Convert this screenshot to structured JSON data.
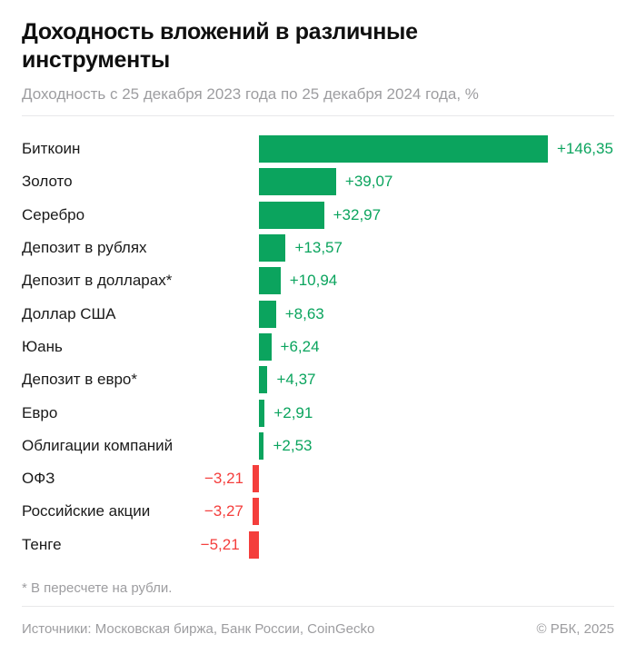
{
  "header": {
    "title": "Доходность вложений в различные инструменты",
    "subtitle": "Доходность с 25 декабря 2023 года по 25 декабря 2024 года, %"
  },
  "chart_data": {
    "type": "bar",
    "orientation": "horizontal",
    "title": "Доходность вложений в различные инструменты",
    "subtitle": "Доходность с 25 декабря 2023 года по 25 декабря 2024 года, %",
    "unit": "%",
    "categories": [
      "Биткоин",
      "Золото",
      "Серебро",
      "Депозит в рублях",
      "Депозит в долларах*",
      "Доллар США",
      "Юань",
      "Депозит в евро*",
      "Евро",
      "Облигации компаний",
      "ОФЗ",
      "Российские акции",
      "Тенге"
    ],
    "values": [
      146.35,
      39.07,
      32.97,
      13.57,
      10.94,
      8.63,
      6.24,
      4.37,
      2.91,
      2.53,
      -3.21,
      -3.27,
      -5.21
    ],
    "value_labels": [
      "+146,35",
      "+39,07",
      "+32,97",
      "+13,57",
      "+10,94",
      "+8,63",
      "+6,24",
      "+4,37",
      "+2,91",
      "+2,53",
      "−3,21",
      "−3,27",
      "−5,21"
    ],
    "xlim": [
      -5.21,
      146.35
    ],
    "grid": false,
    "legend": false,
    "positive_color": "#0ba45e",
    "negative_color": "#f43e3c"
  },
  "footer": {
    "footnote": "* В пересчете на рубли.",
    "sources": "Источники: Московская биржа, Банк России, CoinGecko",
    "copyright": "© РБК, 2025"
  },
  "colors": {
    "positive": "#0ba45e",
    "negative": "#f43e3c",
    "title_text": "#0f0f0f",
    "label_text": "#1a1a1a",
    "muted_text": "#9d9da0",
    "divider": "#e8e8ea",
    "background": "#ffffff"
  }
}
